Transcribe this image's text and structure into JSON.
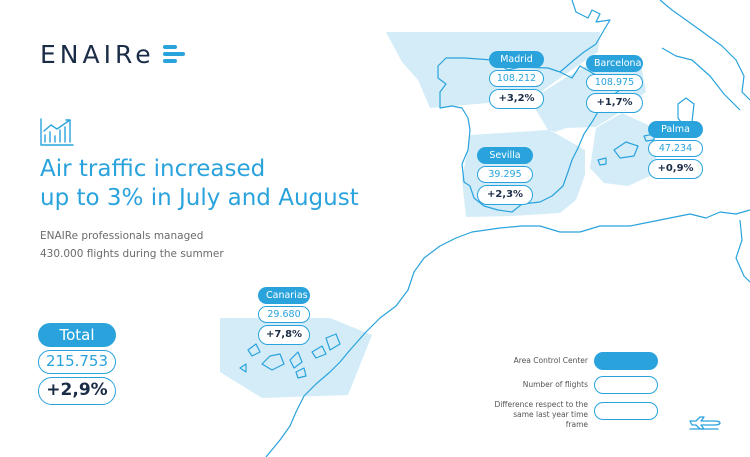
{
  "brand": {
    "logo_text": "ENAIRe"
  },
  "headline": {
    "line1": "Air traffic increased",
    "line2": "up to 3% in July and August"
  },
  "subtext": {
    "line1": "ENAIRe professionals managed",
    "line2": "430.000 flights during the summer"
  },
  "regions": [
    {
      "name": "Madrid",
      "flights": "108.212",
      "diff": "+3,2%"
    },
    {
      "name": "Barcelona",
      "flights": "108.975",
      "diff": "+1,7%"
    },
    {
      "name": "Palma",
      "flights": "47.234",
      "diff": "+0,9%"
    },
    {
      "name": "Sevilla",
      "flights": "39.295",
      "diff": "+2,3%"
    },
    {
      "name": "Canarias",
      "flights": "29.680",
      "diff": "+7,8%"
    }
  ],
  "total": {
    "label": "Total",
    "flights": "215.753",
    "diff": "+2,9%"
  },
  "legend": {
    "acc": "Area Control Center",
    "flights": "Number of flights",
    "diff": "Difference respect to the same last year time frame"
  },
  "icons": {
    "chart": "line-chart-icon",
    "plane": "airplane-icon"
  },
  "colors": {
    "accent": "#2aa3dd",
    "light_fill": "#d3ecf8",
    "navy": "#1b2c47"
  }
}
